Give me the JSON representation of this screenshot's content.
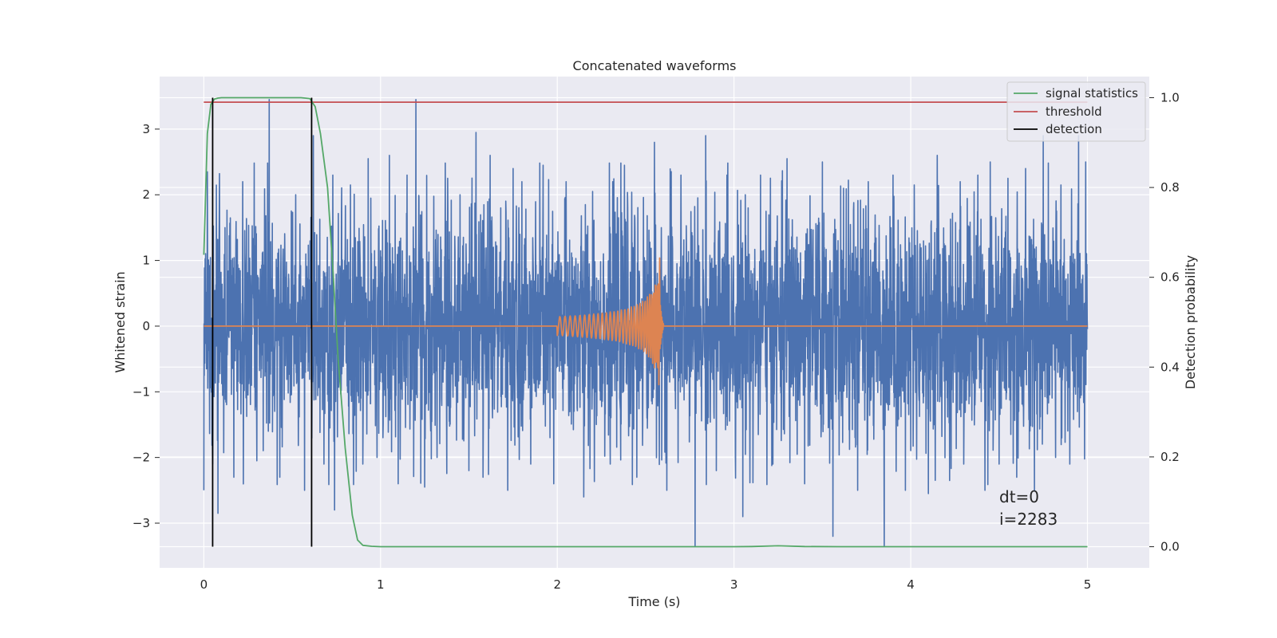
{
  "chart_data": {
    "type": "line",
    "title": "Concatenated waveforms",
    "xlabel": "Time (s)",
    "ylabel": "Whitened strain",
    "y2label": "Detection probability",
    "xlim": [
      -0.25,
      5.35
    ],
    "ylim": [
      -3.68,
      3.8
    ],
    "y2lim": [
      -0.047,
      1.047
    ],
    "xticks": [
      0,
      1,
      2,
      3,
      4,
      5
    ],
    "xtick_labels": [
      "0",
      "1",
      "2",
      "3",
      "4",
      "5"
    ],
    "yticks": [
      -3,
      -2,
      -1,
      0,
      1,
      2,
      3
    ],
    "ytick_labels": [
      "−3",
      "−2",
      "−1",
      "0",
      "1",
      "2",
      "3"
    ],
    "y2ticks": [
      0.0,
      0.2,
      0.4,
      0.6,
      0.8,
      1.0
    ],
    "y2tick_labels": [
      "0.0",
      "0.2",
      "0.4",
      "0.6",
      "0.8",
      "1.0"
    ],
    "grid": true,
    "legend_position": "top-right",
    "colors": {
      "background": "#eaeaf2",
      "grid": "#ffffff",
      "noise": "#4c72b0",
      "template": "#dd8452",
      "signal_statistics": "#55a868",
      "threshold": "#c44e52",
      "detection": "#000000"
    },
    "series": [
      {
        "name": "",
        "axis": "left",
        "kind": "noise",
        "x_range": [
          0,
          5
        ],
        "bulk_amplitude": 1.2,
        "peak_range": [
          -3.35,
          3.45
        ],
        "spikes": [
          [
            0.0,
            -2.5
          ],
          [
            0.02,
            2.35
          ],
          [
            0.05,
            -2.1
          ],
          [
            0.08,
            -2.85
          ],
          [
            0.12,
            1.5
          ],
          [
            0.17,
            -2.3
          ],
          [
            0.22,
            2.2
          ],
          [
            0.3,
            -2.05
          ],
          [
            0.37,
            3.45
          ],
          [
            0.43,
            -2.3
          ],
          [
            0.52,
            2.0
          ],
          [
            0.57,
            -2.5
          ],
          [
            0.62,
            2.9
          ],
          [
            0.68,
            -2.1
          ],
          [
            0.73,
            2.3
          ],
          [
            0.74,
            -2.8
          ],
          [
            0.83,
            2.15
          ],
          [
            0.9,
            -2.1
          ],
          [
            0.93,
            2.55
          ],
          [
            0.98,
            -2.0
          ],
          [
            1.05,
            2.6
          ],
          [
            1.1,
            -2.4
          ],
          [
            1.15,
            2.3
          ],
          [
            1.2,
            3.45
          ],
          [
            1.25,
            -2.45
          ],
          [
            1.32,
            -2.0
          ],
          [
            1.38,
            2.25
          ],
          [
            1.45,
            2.0
          ],
          [
            1.5,
            -2.2
          ],
          [
            1.54,
            2.95
          ],
          [
            1.58,
            -2.3
          ],
          [
            1.62,
            2.6
          ],
          [
            1.68,
            1.8
          ],
          [
            1.72,
            -2.5
          ],
          [
            1.75,
            2.4
          ],
          [
            1.8,
            2.2
          ],
          [
            1.85,
            -2.1
          ],
          [
            1.92,
            2.45
          ],
          [
            1.98,
            -2.4
          ],
          [
            2.05,
            2.2
          ],
          [
            2.15,
            -2.6
          ],
          [
            2.2,
            2.05
          ],
          [
            2.3,
            -2.1
          ],
          [
            2.38,
            2.45
          ],
          [
            2.45,
            -2.3
          ],
          [
            2.55,
            2.8
          ],
          [
            2.62,
            -2.5
          ],
          [
            2.7,
            2.3
          ],
          [
            2.78,
            -3.35
          ],
          [
            2.84,
            2.9
          ],
          [
            2.9,
            -2.2
          ],
          [
            2.96,
            2.3
          ],
          [
            3.05,
            -2.9
          ],
          [
            3.08,
            1.8
          ],
          [
            3.15,
            2.3
          ],
          [
            3.22,
            -2.1
          ],
          [
            3.3,
            2.55
          ],
          [
            3.4,
            -2.4
          ],
          [
            3.5,
            2.5
          ],
          [
            3.56,
            -3.2
          ],
          [
            3.62,
            2.1
          ],
          [
            3.7,
            -2.5
          ],
          [
            3.76,
            2.2
          ],
          [
            3.85,
            -3.35
          ],
          [
            3.9,
            2.3
          ],
          [
            3.97,
            -2.5
          ],
          [
            4.02,
            2.15
          ],
          [
            4.1,
            -2.55
          ],
          [
            4.15,
            2.6
          ],
          [
            4.22,
            -2.35
          ],
          [
            4.28,
            2.2
          ],
          [
            4.3,
            -2.1
          ],
          [
            4.38,
            2.3
          ],
          [
            4.42,
            -2.5
          ],
          [
            4.45,
            2.5
          ],
          [
            4.5,
            -2.1
          ],
          [
            4.55,
            2.25
          ],
          [
            4.6,
            -2.3
          ],
          [
            4.65,
            2.4
          ],
          [
            4.7,
            -2.5
          ],
          [
            4.75,
            2.9
          ],
          [
            4.82,
            -2.0
          ],
          [
            4.85,
            2.15
          ],
          [
            4.9,
            -2.1
          ],
          [
            4.95,
            2.9
          ],
          [
            4.99,
            2.5
          ]
        ]
      },
      {
        "name": "",
        "axis": "left",
        "kind": "chirp",
        "x_range": [
          0,
          5
        ],
        "chirp_start": 2.0,
        "merger_time": 2.58,
        "peak_amplitude": 1.1,
        "ringdown_end": 2.6
      },
      {
        "name": "signal statistics",
        "axis": "right",
        "x": [
          0.0,
          0.02,
          0.04,
          0.06,
          0.08,
          0.1,
          0.2,
          0.4,
          0.55,
          0.6,
          0.63,
          0.66,
          0.7,
          0.73,
          0.76,
          0.8,
          0.84,
          0.87,
          0.9,
          0.95,
          1.0,
          2.0,
          3.0,
          3.1,
          3.25,
          3.4,
          3.6,
          4.0,
          5.0
        ],
        "values": [
          0.65,
          0.92,
          0.985,
          0.997,
          0.999,
          1.0,
          1.0,
          1.0,
          1.0,
          0.998,
          0.98,
          0.92,
          0.8,
          0.62,
          0.42,
          0.22,
          0.07,
          0.015,
          0.003,
          0.001,
          0.0,
          0.0,
          0.0,
          0.0005,
          0.002,
          0.0005,
          0.0,
          0.0,
          0.0
        ]
      },
      {
        "name": "threshold",
        "axis": "right",
        "x": [
          0,
          5
        ],
        "values": [
          0.99,
          0.99
        ]
      },
      {
        "name": "detection",
        "axis": "right",
        "kind": "vlines",
        "x": [
          0.05,
          0.61
        ],
        "ymin": 0.0,
        "ymax": 1.0
      }
    ],
    "annotations": [
      "dt=0",
      "i=2283"
    ]
  }
}
